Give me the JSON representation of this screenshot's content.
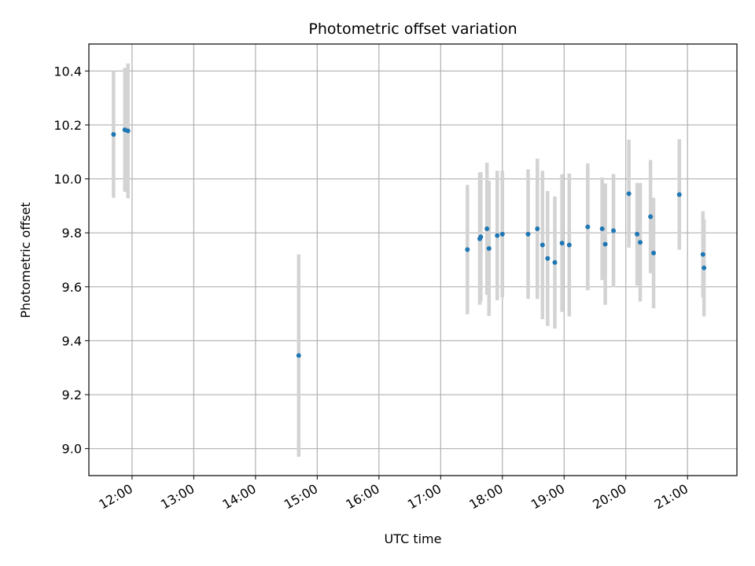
{
  "chart_data": {
    "type": "scatter",
    "title": "Photometric offset variation",
    "xlabel": "UTC time",
    "ylabel": "Photometric offset",
    "x_ticks": [
      "12:00",
      "13:00",
      "14:00",
      "15:00",
      "16:00",
      "17:00",
      "18:00",
      "19:00",
      "20:00",
      "21:00"
    ],
    "y_ticks": [
      "9.0",
      "9.2",
      "9.4",
      "9.6",
      "9.8",
      "10.0",
      "10.2",
      "10.4"
    ],
    "xlim": [
      "11:18",
      "21:48"
    ],
    "ylim": [
      8.9,
      10.5
    ],
    "grid": true,
    "point_color": "#1f77b4",
    "errorbar_color": "#d3d3d3",
    "points": [
      {
        "x": "11:42",
        "y": 10.165,
        "err": 0.235
      },
      {
        "x": "11:53",
        "y": 10.182,
        "err": 0.23
      },
      {
        "x": "11:56",
        "y": 10.178,
        "err": 0.25
      },
      {
        "x": "14:42",
        "y": 9.345,
        "err": 0.375
      },
      {
        "x": "17:26",
        "y": 9.738,
        "err": 0.24
      },
      {
        "x": "17:38",
        "y": 9.778,
        "err": 0.245
      },
      {
        "x": "17:39",
        "y": 9.785,
        "err": 0.24
      },
      {
        "x": "17:45",
        "y": 9.815,
        "err": 0.245
      },
      {
        "x": "17:47",
        "y": 9.742,
        "err": 0.25
      },
      {
        "x": "17:55",
        "y": 9.79,
        "err": 0.24
      },
      {
        "x": "18:00",
        "y": 9.795,
        "err": 0.235
      },
      {
        "x": "18:25",
        "y": 9.795,
        "err": 0.24
      },
      {
        "x": "18:34",
        "y": 9.815,
        "err": 0.26
      },
      {
        "x": "18:39",
        "y": 9.755,
        "err": 0.275
      },
      {
        "x": "18:44",
        "y": 9.705,
        "err": 0.25
      },
      {
        "x": "18:51",
        "y": 9.69,
        "err": 0.245
      },
      {
        "x": "18:58",
        "y": 9.762,
        "err": 0.255
      },
      {
        "x": "19:05",
        "y": 9.755,
        "err": 0.265
      },
      {
        "x": "19:23",
        "y": 9.822,
        "err": 0.235
      },
      {
        "x": "19:37",
        "y": 9.815,
        "err": 0.19
      },
      {
        "x": "19:40",
        "y": 9.758,
        "err": 0.225
      },
      {
        "x": "19:48",
        "y": 9.808,
        "err": 0.21
      },
      {
        "x": "20:03",
        "y": 9.945,
        "err": 0.2
      },
      {
        "x": "20:11",
        "y": 9.795,
        "err": 0.19
      },
      {
        "x": "20:14",
        "y": 9.765,
        "err": 0.22
      },
      {
        "x": "20:24",
        "y": 9.86,
        "err": 0.21
      },
      {
        "x": "20:27",
        "y": 9.725,
        "err": 0.205
      },
      {
        "x": "20:52",
        "y": 9.942,
        "err": 0.205
      },
      {
        "x": "21:15",
        "y": 9.72,
        "err": 0.16
      },
      {
        "x": "21:16",
        "y": 9.67,
        "err": 0.18
      }
    ]
  }
}
